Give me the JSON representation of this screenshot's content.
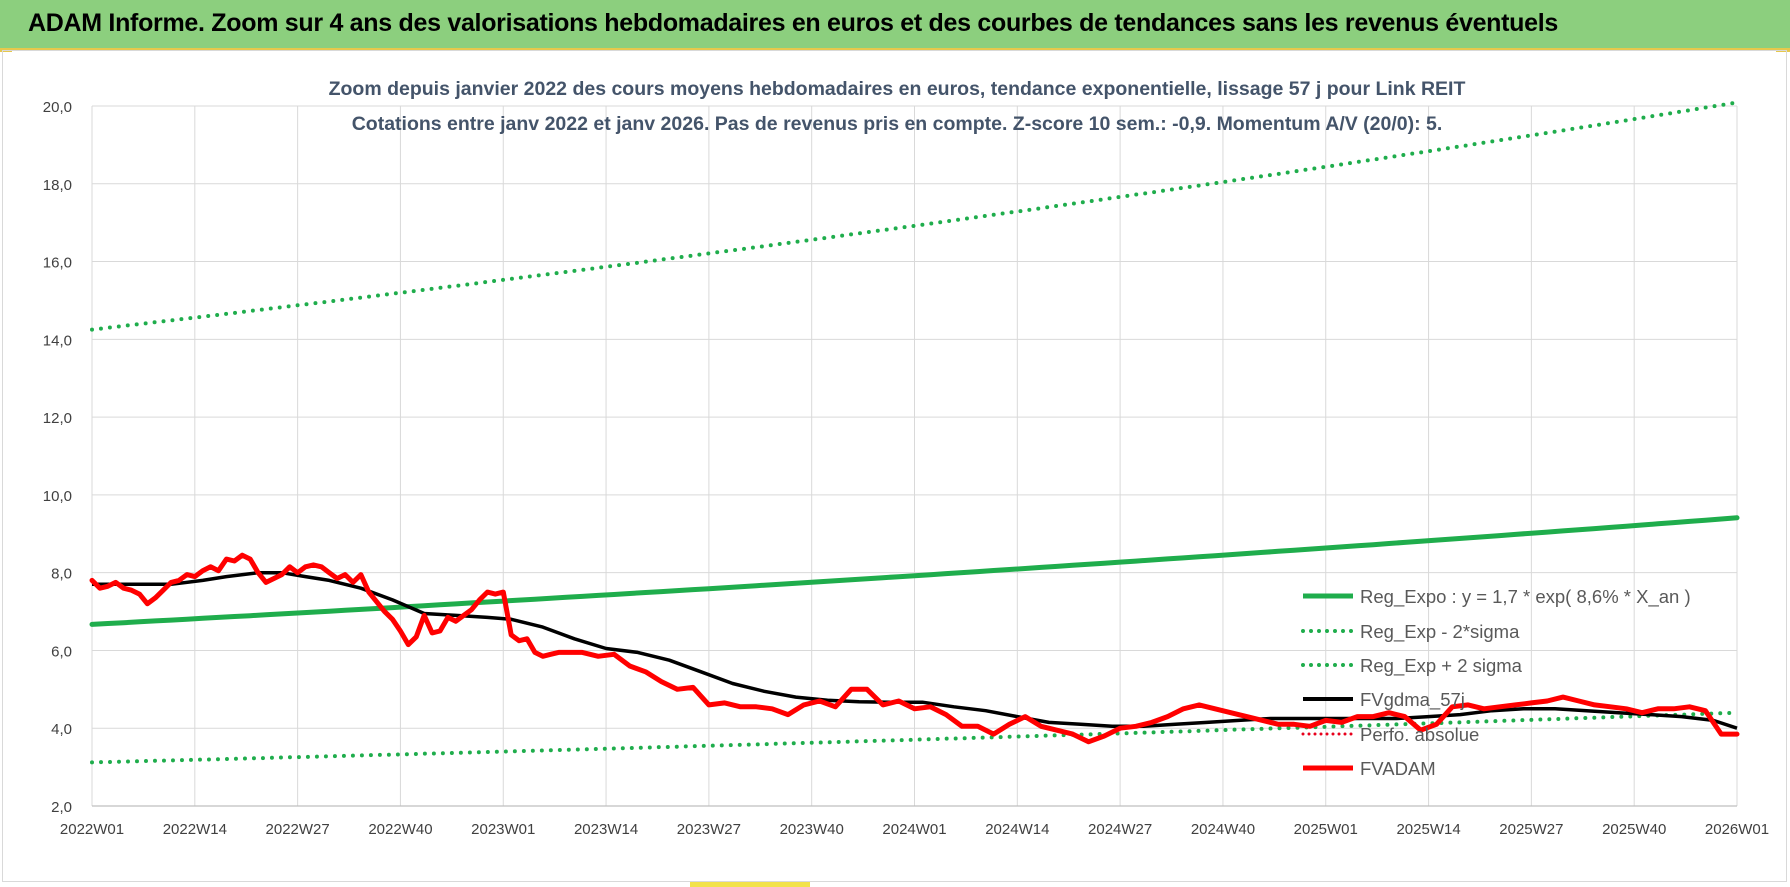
{
  "header": {
    "title": "ADAM Informe. Zoom sur 4 ans des valorisations hebdomadaires en euros et des courbes de tendances sans les revenus éventuels"
  },
  "chart_data": {
    "type": "line",
    "title": "Zoom depuis janvier 2022 des cours moyens hebdomadaires en euros, tendance exponentielle, lissage 57 j pour Link REIT",
    "subtitle": "Cotations entre janv 2022 et janv 2026. Pas de revenus pris en compte. Z-score 10 sem.: -0,9. Momentum A/V (20/0): 5.",
    "xlabel": "",
    "ylabel": "",
    "ylim": [
      2.0,
      20.0
    ],
    "yticks": [
      "2,0",
      "4,0",
      "6,0",
      "8,0",
      "10,0",
      "12,0",
      "14,0",
      "16,0",
      "18,0",
      "20,0"
    ],
    "xticks": [
      "2022W01",
      "2022W14",
      "2022W27",
      "2022W40",
      "2023W01",
      "2023W14",
      "2023W27",
      "2023W40",
      "2024W01",
      "2024W14",
      "2024W27",
      "2024W40",
      "2025W01",
      "2025W14",
      "2025W27",
      "2025W40",
      "2026W01"
    ],
    "grid": true,
    "legend_position": "bottom-right",
    "colors": {
      "trend": "#1fad4c",
      "band": "#1fad4c",
      "smooth": "#000000",
      "perf": "#e8001c",
      "price": "#ff0000",
      "grid": "#d9d9d9",
      "axis_text": "#404040",
      "title_text": "#44546a"
    },
    "series": [
      {
        "name": "Reg_Expo : y = 1,7 * exp( 8,6% *  X_an )",
        "style": "solid-thick",
        "x_index": [
          0,
          52,
          104,
          156,
          208
        ],
        "values": [
          6.67,
          7.27,
          7.92,
          8.63,
          9.41
        ]
      },
      {
        "name": "Reg_Exp - 2*sigma",
        "style": "dotted",
        "x_index": [
          0,
          52,
          104,
          156,
          208
        ],
        "values": [
          3.12,
          3.4,
          3.7,
          4.04,
          4.4
        ]
      },
      {
        "name": "Reg_Exp + 2 sigma",
        "style": "dotted",
        "x_index": [
          0,
          52,
          104,
          156,
          208
        ],
        "values": [
          14.25,
          15.53,
          16.92,
          18.44,
          20.09
        ]
      },
      {
        "name": "FVgdma_57j",
        "style": "solid",
        "x_index": [
          0,
          6,
          10,
          14,
          17,
          21,
          24,
          27,
          30,
          34,
          38,
          42,
          46,
          50,
          53,
          57,
          61,
          65,
          69,
          73,
          77,
          81,
          85,
          89,
          93,
          97,
          101,
          105,
          109,
          113,
          117,
          121,
          125,
          129,
          133,
          137,
          141,
          145,
          149,
          153,
          157,
          161,
          165,
          169,
          173,
          177,
          181,
          185,
          189,
          193,
          197,
          201,
          205,
          208
        ],
        "values": [
          7.7,
          7.7,
          7.7,
          7.8,
          7.9,
          8.0,
          8.0,
          7.9,
          7.8,
          7.6,
          7.3,
          6.95,
          6.9,
          6.85,
          6.8,
          6.6,
          6.3,
          6.05,
          5.95,
          5.75,
          5.45,
          5.15,
          4.95,
          4.8,
          4.72,
          4.68,
          4.67,
          4.67,
          4.55,
          4.45,
          4.3,
          4.15,
          4.1,
          4.05,
          4.05,
          4.1,
          4.15,
          4.2,
          4.25,
          4.25,
          4.25,
          4.25,
          4.25,
          4.3,
          4.35,
          4.45,
          4.5,
          4.5,
          4.45,
          4.4,
          4.35,
          4.3,
          4.2,
          4.0
        ]
      },
      {
        "name": "Perfo. absolue",
        "style": "dotted-thin",
        "x_index": [],
        "values": []
      },
      {
        "name": "FVADAM",
        "style": "solid-thick",
        "x_index": [
          0,
          1,
          2,
          3,
          4,
          5,
          6,
          7,
          8,
          9,
          10,
          11,
          12,
          13,
          14,
          15,
          16,
          17,
          18,
          19,
          20,
          21,
          22,
          23,
          24,
          25,
          26,
          27,
          28,
          29,
          30,
          31,
          32,
          33,
          34,
          35,
          36,
          37,
          38,
          39,
          40,
          41,
          42,
          43,
          44,
          45,
          46,
          47,
          48,
          49,
          50,
          51,
          52,
          53,
          54,
          55,
          56,
          57,
          58,
          59,
          60,
          62,
          64,
          66,
          68,
          70,
          72,
          74,
          76,
          78,
          80,
          82,
          84,
          86,
          88,
          90,
          92,
          94,
          96,
          98,
          100,
          102,
          104,
          106,
          108,
          110,
          112,
          114,
          116,
          118,
          120,
          122,
          124,
          126,
          128,
          130,
          132,
          134,
          136,
          138,
          140,
          142,
          144,
          146,
          148,
          150,
          152,
          154,
          156,
          158,
          160,
          162,
          164,
          166,
          168,
          170,
          172,
          174,
          176,
          178,
          180,
          182,
          184,
          186,
          188,
          190,
          192,
          194,
          196,
          198,
          200,
          202,
          204,
          206,
          208
        ],
        "values": [
          7.8,
          7.6,
          7.65,
          7.75,
          7.6,
          7.55,
          7.45,
          7.2,
          7.35,
          7.55,
          7.75,
          7.8,
          7.95,
          7.9,
          8.05,
          8.15,
          8.05,
          8.35,
          8.3,
          8.45,
          8.35,
          8.0,
          7.75,
          7.85,
          7.95,
          8.15,
          8.0,
          8.15,
          8.2,
          8.15,
          8.0,
          7.85,
          7.95,
          7.75,
          7.95,
          7.5,
          7.25,
          7.0,
          6.8,
          6.5,
          6.15,
          6.35,
          6.9,
          6.45,
          6.5,
          6.85,
          6.75,
          6.9,
          7.05,
          7.3,
          7.5,
          7.45,
          7.5,
          6.4,
          6.25,
          6.3,
          5.95,
          5.85,
          5.9,
          5.95,
          5.95,
          5.95,
          5.85,
          5.9,
          5.6,
          5.45,
          5.2,
          5.0,
          5.05,
          4.6,
          4.65,
          4.55,
          4.55,
          4.5,
          4.35,
          4.6,
          4.7,
          4.55,
          5.0,
          5.0,
          4.6,
          4.7,
          4.5,
          4.55,
          4.35,
          4.05,
          4.05,
          3.85,
          4.1,
          4.3,
          4.05,
          3.95,
          3.85,
          3.65,
          3.8,
          4.0,
          4.05,
          4.15,
          4.3,
          4.5,
          4.6,
          4.5,
          4.4,
          4.3,
          4.2,
          4.1,
          4.1,
          4.05,
          4.2,
          4.15,
          4.3,
          4.3,
          4.4,
          4.3,
          3.95,
          4.1,
          4.55,
          4.6,
          4.5,
          4.55,
          4.6,
          4.65,
          4.7,
          4.8,
          4.7,
          4.6,
          4.55,
          4.5,
          4.4,
          4.5,
          4.5,
          4.55,
          4.45,
          3.85,
          3.85
        ]
      }
    ]
  }
}
